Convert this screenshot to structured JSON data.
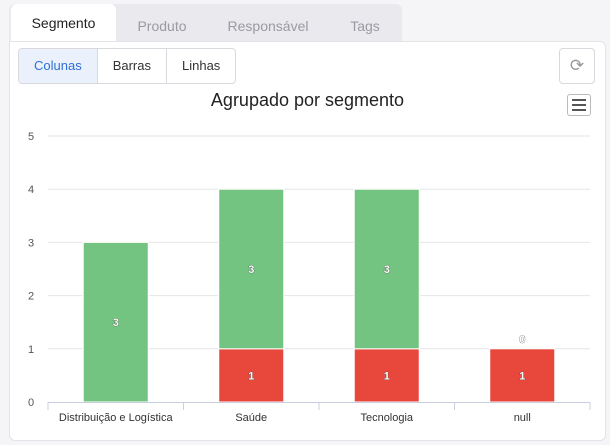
{
  "tabs": [
    {
      "label": "Segmento",
      "active": true
    },
    {
      "label": "Produto",
      "active": false
    },
    {
      "label": "Responsável",
      "active": false
    },
    {
      "label": "Tags",
      "active": false
    }
  ],
  "view_buttons": [
    {
      "label": "Colunas",
      "active": true
    },
    {
      "label": "Barras",
      "active": false
    },
    {
      "label": "Linhas",
      "active": false
    }
  ],
  "icons": {
    "refresh": "refresh-icon",
    "menu": "hamburger-menu-icon"
  },
  "chart_data": {
    "type": "bar",
    "stacked": true,
    "title": "Agrupado por segmento",
    "categories": [
      "Distribuição e Logística",
      "Saúde",
      "Tecnologia",
      "null"
    ],
    "series": [
      {
        "color": "#e8473b",
        "values": [
          0,
          1,
          1,
          1
        ]
      },
      {
        "color": "#73c480",
        "values": [
          3,
          3,
          3,
          0
        ]
      }
    ],
    "ylim": [
      0,
      5
    ],
    "yticks": [
      0,
      1,
      2,
      3,
      4,
      5
    ],
    "grid": true,
    "legend": false
  }
}
